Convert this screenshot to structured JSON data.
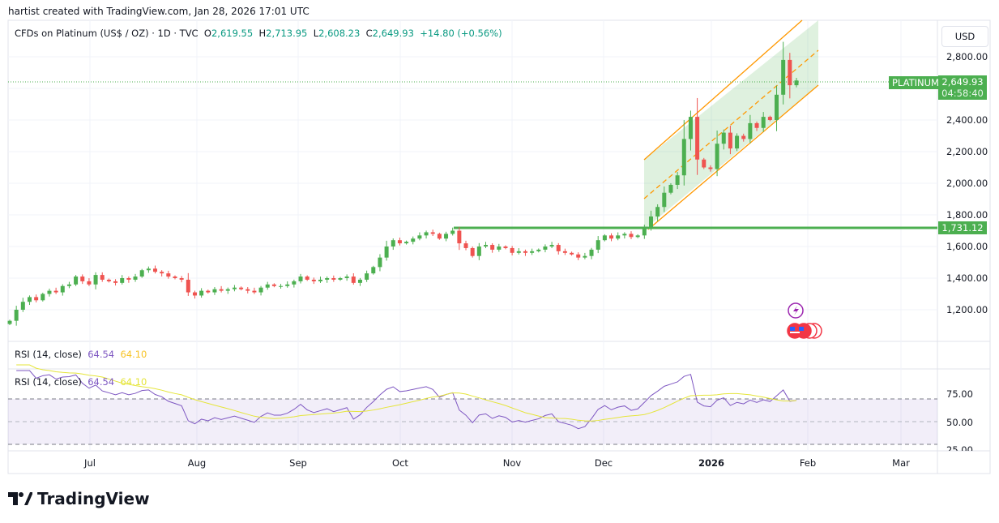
{
  "header": {
    "credit": "hartist created with TradingView.com, Jan 28, 2026 17:01 UTC"
  },
  "legend": {
    "symbol": "CFDs on Platinum (US$ / OZ) · 1D · TVC",
    "o_label": "O",
    "o": "2,619.55",
    "h_label": "H",
    "h": "2,713.95",
    "l_label": "L",
    "l": "2,608.23",
    "c_label": "C",
    "c": "2,649.93",
    "change": "+14.80 (+0.56%)"
  },
  "price_axis": {
    "currency": "USD",
    "ticks": [
      "2,800.00",
      "2,400.00",
      "2,200.00",
      "2,000.00",
      "1,800.00",
      "1,600.00",
      "1,400.00",
      "1,200.00"
    ],
    "last_price": "2,649.93",
    "countdown": "04:58:40",
    "symbol_tag": "PLATINUM",
    "level": "1,731.12"
  },
  "rsi_empty": {
    "name": "RSI (14, close)",
    "value": "64.54",
    "ma": "64.10"
  },
  "rsi": {
    "name": "RSI (14, close)",
    "value": "64.54",
    "ma": "64.10",
    "ticks": [
      "75.00",
      "50.00",
      "25.00"
    ]
  },
  "time_axis": [
    "Jul",
    "Aug",
    "Sep",
    "Oct",
    "Nov",
    "Dec",
    "2026",
    "Feb",
    "Mar"
  ],
  "brand": "TradingView",
  "colors": {
    "up": "#089981",
    "down": "#f23645",
    "candle_up": "#4caf50",
    "candle_down": "#ef5350",
    "channel": "#ff9800",
    "level": "#4caf50",
    "rsi": "#7e57c2",
    "rsi_ma": "#e5e53a"
  },
  "chart_data": {
    "type": "candlestick",
    "title": "CFDs on Platinum (US$ / OZ) · 1D · TVC",
    "ylim": [
      1050,
      2950
    ],
    "closes": [
      1130,
      1200,
      1250,
      1280,
      1260,
      1300,
      1320,
      1310,
      1350,
      1360,
      1410,
      1380,
      1360,
      1420,
      1390,
      1380,
      1370,
      1400,
      1390,
      1410,
      1450,
      1460,
      1440,
      1430,
      1410,
      1400,
      1390,
      1310,
      1290,
      1320,
      1310,
      1330,
      1320,
      1330,
      1340,
      1330,
      1320,
      1310,
      1340,
      1360,
      1350,
      1350,
      1360,
      1380,
      1410,
      1390,
      1380,
      1390,
      1400,
      1390,
      1400,
      1410,
      1370,
      1390,
      1430,
      1470,
      1530,
      1600,
      1640,
      1620,
      1630,
      1650,
      1670,
      1690,
      1680,
      1650,
      1680,
      1700,
      1620,
      1590,
      1540,
      1600,
      1610,
      1580,
      1600,
      1590,
      1560,
      1570,
      1560,
      1570,
      1580,
      1600,
      1610,
      1570,
      1560,
      1550,
      1530,
      1540,
      1580,
      1640,
      1670,
      1650,
      1670,
      1680,
      1660,
      1670,
      1720,
      1790,
      1850,
      1940,
      1990,
      2050,
      2280,
      2420,
      2150,
      2100,
      2090,
      2250,
      2320,
      2220,
      2300,
      2280,
      2380,
      2350,
      2420,
      2400,
      2560,
      2780,
      2620,
      2650
    ],
    "horizontal_level": 1731.12,
    "rsi_levels": [
      70,
      50,
      30
    ]
  }
}
